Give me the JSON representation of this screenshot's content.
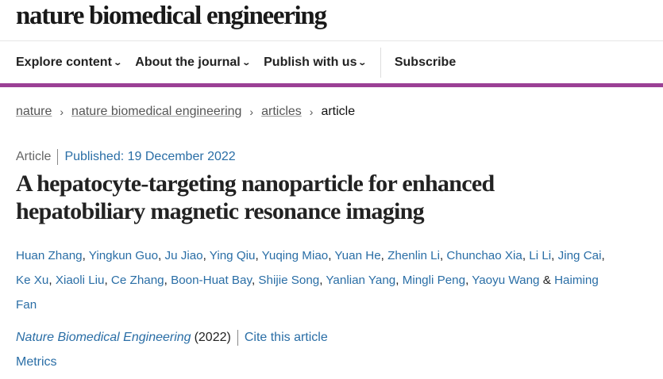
{
  "header": {
    "logo": "nature biomedical engineering"
  },
  "nav": {
    "items": [
      {
        "label": "Explore content"
      },
      {
        "label": "About the journal"
      },
      {
        "label": "Publish with us"
      }
    ],
    "subscribe": "Subscribe",
    "chevron": "⌄",
    "accent_color": "#9b4095"
  },
  "breadcrumb": {
    "items": [
      "nature",
      "nature biomedical engineering",
      "articles"
    ],
    "current": "article",
    "separator": "›"
  },
  "article": {
    "type": "Article",
    "published": "Published: 19 December 2022",
    "title": "A hepatocyte-targeting nanoparticle for enhanced hepatobiliary magnetic resonance imaging",
    "authors": [
      "Huan Zhang",
      "Yingkun Guo",
      "Ju Jiao",
      "Ying Qiu",
      "Yuqing Miao",
      "Yuan He",
      "Zhenlin Li",
      "Chunchao Xia",
      "Li Li",
      "Jing Cai",
      "Ke Xu",
      "Xiaoli Liu",
      "Ce Zhang",
      "Boon-Huat Bay",
      "Shijie Song",
      "Yanlian Yang",
      "Mingli Peng",
      "Yaoyu Wang",
      "Haiming Fan"
    ],
    "journal": "Nature Biomedical Engineering",
    "year": "(2022)",
    "cite": "Cite this article",
    "metrics": "Metrics"
  }
}
